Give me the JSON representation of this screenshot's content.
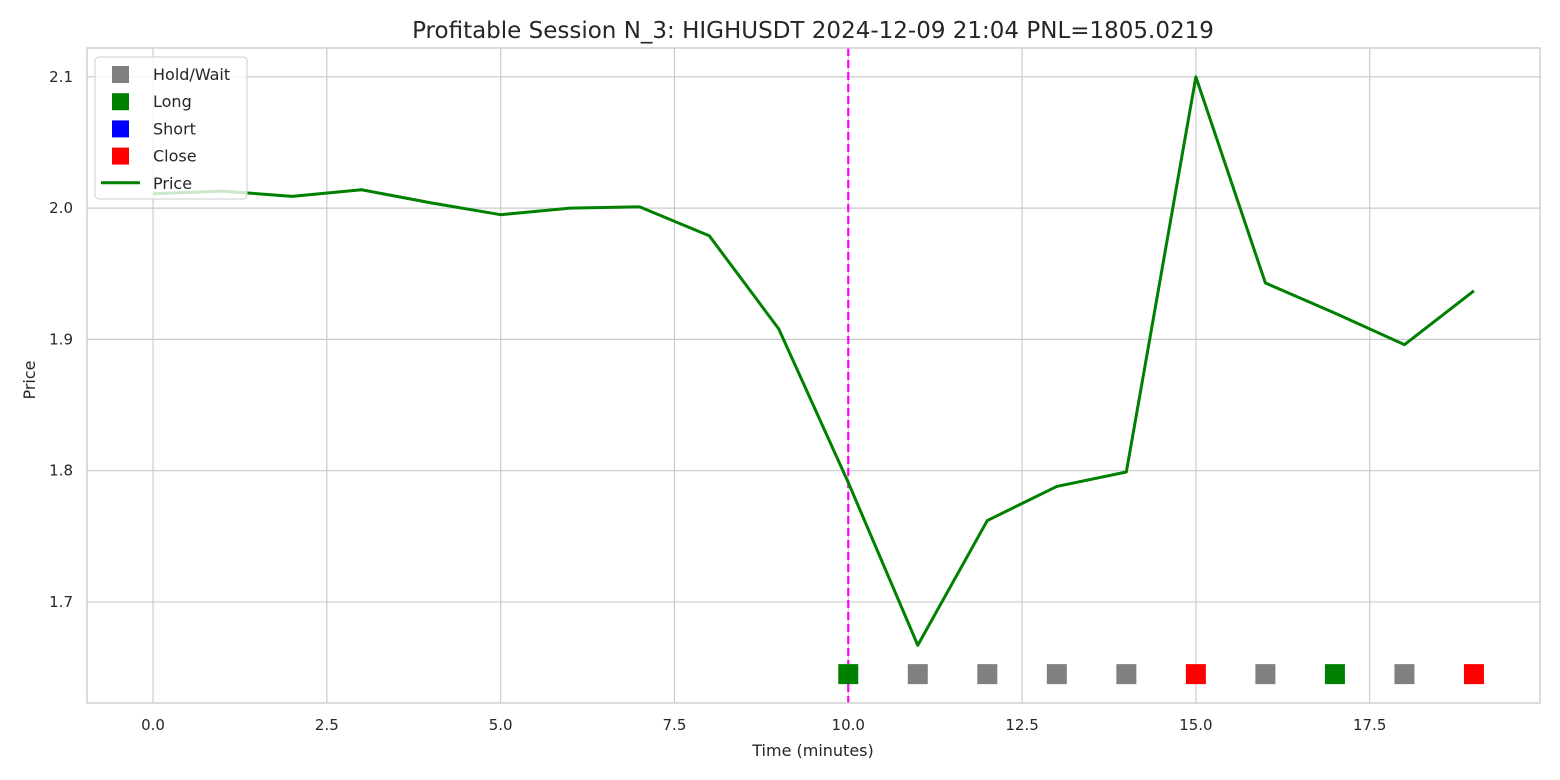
{
  "chart_data": {
    "type": "line",
    "title": "Profitable Session N_3: HIGHUSDT 2024-12-09 21:04  PNL=1805.0219",
    "xlabel": "Time (minutes)",
    "ylabel": "Price",
    "xlim": [
      -0.95,
      19.95
    ],
    "ylim": [
      1.623,
      2.122
    ],
    "grid": true,
    "legend_position": "upper left",
    "x_ticks": [
      "0.0",
      "2.5",
      "5.0",
      "7.5",
      "10.0",
      "12.5",
      "15.0",
      "17.5"
    ],
    "x_tick_values": [
      0,
      2.5,
      5,
      7.5,
      10,
      12.5,
      15,
      17.5
    ],
    "y_ticks": [
      "1.7",
      "1.8",
      "1.9",
      "2.0",
      "2.1"
    ],
    "y_tick_values": [
      1.7,
      1.8,
      1.9,
      2.0,
      2.1
    ],
    "series": [
      {
        "name": "Price",
        "type": "line",
        "color": "#008000",
        "x": [
          0,
          1,
          2,
          3,
          4,
          5,
          6,
          7,
          8,
          9,
          10,
          11,
          12,
          13,
          14,
          15,
          16,
          17,
          18,
          19
        ],
        "values": [
          2.011,
          2.013,
          2.009,
          2.014,
          2.004,
          1.995,
          2.0,
          2.001,
          1.979,
          1.908,
          1.791,
          1.667,
          1.762,
          1.788,
          1.799,
          2.1,
          1.943,
          1.92,
          1.896,
          1.937
        ]
      }
    ],
    "actions": {
      "marker_y": 1.645,
      "points": [
        {
          "x": 10,
          "action": "Long"
        },
        {
          "x": 11,
          "action": "Hold/Wait"
        },
        {
          "x": 12,
          "action": "Hold/Wait"
        },
        {
          "x": 13,
          "action": "Hold/Wait"
        },
        {
          "x": 14,
          "action": "Hold/Wait"
        },
        {
          "x": 15,
          "action": "Close"
        },
        {
          "x": 16,
          "action": "Hold/Wait"
        },
        {
          "x": 17,
          "action": "Long"
        },
        {
          "x": 18,
          "action": "Hold/Wait"
        },
        {
          "x": 19,
          "action": "Close"
        }
      ]
    },
    "vertical_line": {
      "x": 10,
      "color": "#ff00ff",
      "style": "dashed"
    },
    "legend": [
      {
        "label": "Hold/Wait",
        "type": "square",
        "color": "#808080"
      },
      {
        "label": "Long",
        "type": "square",
        "color": "#008000"
      },
      {
        "label": "Short",
        "type": "square",
        "color": "#0000ff"
      },
      {
        "label": "Close",
        "type": "square",
        "color": "#ff0000"
      },
      {
        "label": "Price",
        "type": "line",
        "color": "#008000"
      }
    ]
  },
  "colors": {
    "Hold/Wait": "#808080",
    "Long": "#008000",
    "Short": "#0000ff",
    "Close": "#ff0000",
    "price_line": "#008000",
    "entry_line": "#ff00ff",
    "grid": "#cccccc"
  }
}
